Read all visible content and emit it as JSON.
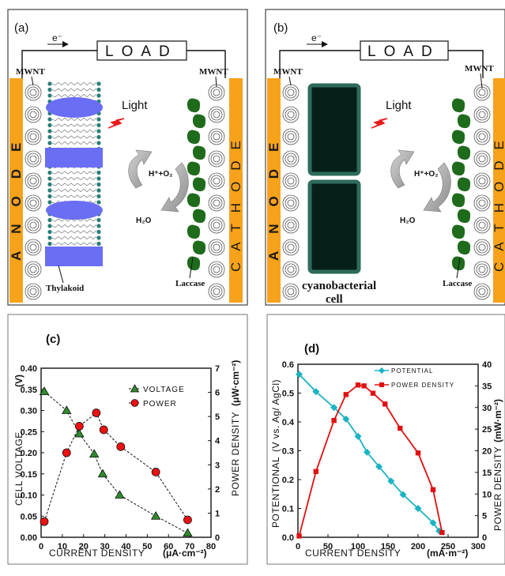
{
  "panel_a": {
    "letter": "(a)",
    "electron": "e⁻",
    "load": "LOAD",
    "anode": "ANODE",
    "cathode": "CATHODE",
    "mwnt_left": "MWNT",
    "mwnt_right": "MWNT",
    "light": "Light",
    "h_o2": "H⁺+O₂",
    "h2o": "H₂O",
    "thylakoid": "Thylakoid",
    "laccase": "Laccase"
  },
  "panel_b": {
    "letter": "(b)",
    "electron": "e⁻",
    "load": "LOAD",
    "anode": "ANODE",
    "cathode": "CATHODE",
    "mwnt_left": "MWNT",
    "mwnt_right": "MWNT",
    "light": "Light",
    "h_o2": "H⁺+O₂",
    "h2o": "H₂O",
    "cell_line1": "cyanobacterial",
    "cell_line2": "cell",
    "laccase": "Laccase"
  },
  "colors": {
    "electrode": "#f7a21b",
    "thylakoid": "#6a6ef4",
    "laccase": "#1f6b1c",
    "cyano_fill": "#062019",
    "cyano_border": "#2e6b5a",
    "bead": "#2a7e7a",
    "voltage": "#2e8b2e",
    "power": "#ee1111",
    "potential": "#1ab3c4",
    "power_density": "#e01010"
  },
  "chart_data": [
    {
      "panel": "(c)",
      "type": "line",
      "xlabel": "CURRENT DENSITY",
      "xunit": "(μA·cm⁻²)",
      "ylabel": "CELL VOLTAGE",
      "yunit": "(V)",
      "y2label": "POWER DENSITY",
      "y2unit": "(μW·cm⁻²)",
      "xlim": [
        0,
        80
      ],
      "ylim": [
        0,
        0.4
      ],
      "y2lim": [
        0,
        7
      ],
      "xticks": [
        "0",
        "10",
        "20",
        "30",
        "40",
        "50",
        "60",
        "70",
        "80"
      ],
      "yticks": [
        "0.00",
        "0.05",
        "0.10",
        "0.15",
        "0.20",
        "0.25",
        "0.30",
        "0.35",
        "0.40"
      ],
      "y2ticks": [
        "0",
        "1",
        "2",
        "3",
        "4",
        "5",
        "6",
        "7"
      ],
      "legend_position": "top-right",
      "series": [
        {
          "name": "VOLTAGE",
          "axis": "left",
          "marker": "triangle",
          "points": [
            [
              1.5,
              0.345
            ],
            [
              12,
              0.3
            ],
            [
              18,
              0.245
            ],
            [
              25,
              0.197
            ],
            [
              29,
              0.15
            ],
            [
              37,
              0.1
            ],
            [
              54,
              0.05
            ],
            [
              69,
              0.01
            ]
          ]
        },
        {
          "name": "POWER",
          "axis": "right",
          "marker": "circle",
          "points": [
            [
              1.5,
              0.65
            ],
            [
              12,
              3.5
            ],
            [
              18,
              4.6
            ],
            [
              26,
              5.15
            ],
            [
              29.5,
              4.45
            ],
            [
              37.5,
              3.75
            ],
            [
              54,
              2.7
            ],
            [
              69,
              0.72
            ]
          ]
        }
      ]
    },
    {
      "panel": "(d)",
      "type": "line",
      "xlabel": "CURRENT DENSITY",
      "xunit": "(mA·m⁻²)",
      "ylabel": "POTENTIONAL",
      "yunit": "(V vs. Ag/ AgCl)",
      "y2label": "POWER DENSITY",
      "y2unit": "(mW·m⁻²)",
      "xlim": [
        0,
        300
      ],
      "ylim": [
        0,
        0.6
      ],
      "y2lim": [
        0,
        40
      ],
      "xticks": [
        "0",
        "50",
        "100",
        "150",
        "200",
        "250",
        "300"
      ],
      "yticks": [
        "0.0",
        "0.1",
        "0.2",
        "0.3",
        "0.4",
        "0.5",
        "0.6"
      ],
      "y2ticks": [
        "0",
        "5",
        "10",
        "15",
        "20",
        "25",
        "30",
        "35",
        "40"
      ],
      "legend_position": "top-right",
      "series": [
        {
          "name": "POTENTIAL",
          "axis": "left",
          "marker": "diamond",
          "points": [
            [
              2,
              0.565
            ],
            [
              30,
              0.505
            ],
            [
              60,
              0.45
            ],
            [
              80,
              0.41
            ],
            [
              100,
              0.35
            ],
            [
              115,
              0.295
            ],
            [
              135,
              0.245
            ],
            [
              155,
              0.195
            ],
            [
              175,
              0.148
            ],
            [
              200,
              0.1
            ],
            [
              225,
              0.05
            ],
            [
              235,
              0.022
            ]
          ]
        },
        {
          "name": "POWER DENSITY",
          "axis": "right",
          "marker": "square",
          "points": [
            [
              2,
              0.3
            ],
            [
              30,
              15.2
            ],
            [
              60,
              27.0
            ],
            [
              80,
              33.0
            ],
            [
              100,
              35.2
            ],
            [
              110,
              35.0
            ],
            [
              125,
              33.3
            ],
            [
              145,
              30.8
            ],
            [
              170,
              25.2
            ],
            [
              200,
              19.5
            ],
            [
              225,
              11.0
            ],
            [
              240,
              1.1
            ]
          ]
        }
      ]
    }
  ]
}
